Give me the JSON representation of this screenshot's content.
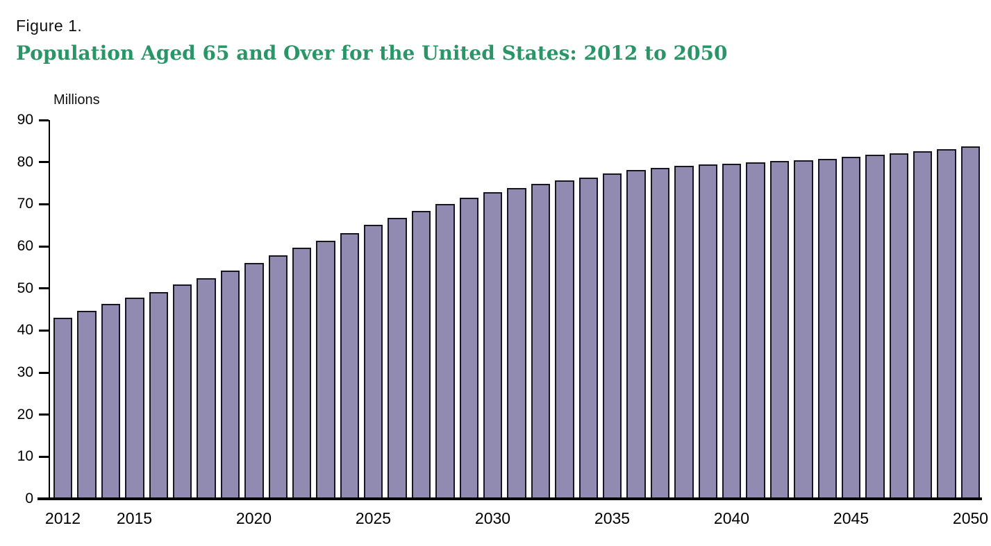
{
  "header": {
    "figure_label": "Figure 1.",
    "title": "Population Aged 65 and Over for the United States: 2012 to 2050"
  },
  "chart_data": {
    "type": "bar",
    "title": "Population Aged 65 and Over for the United States: 2012 to 2050",
    "ylabel": "Millions",
    "xlabel": "",
    "ylim": [
      0,
      90
    ],
    "grid": false,
    "legend": null,
    "y_ticks": [
      0,
      10,
      20,
      30,
      40,
      50,
      60,
      70,
      80,
      90
    ],
    "categories": [
      "2012",
      "2013",
      "2014",
      "2015",
      "2016",
      "2017",
      "2018",
      "2019",
      "2020",
      "2021",
      "2022",
      "2023",
      "2024",
      "2025",
      "2026",
      "2027",
      "2028",
      "2029",
      "2030",
      "2031",
      "2032",
      "2033",
      "2034",
      "2035",
      "2036",
      "2037",
      "2038",
      "2039",
      "2040",
      "2041",
      "2042",
      "2043",
      "2044",
      "2045",
      "2046",
      "2047",
      "2048",
      "2049",
      "2050"
    ],
    "values": [
      43.1,
      44.7,
      46.3,
      47.8,
      49.2,
      50.9,
      52.4,
      54.2,
      56.0,
      57.8,
      59.7,
      61.4,
      63.2,
      65.1,
      66.8,
      68.4,
      70.0,
      71.5,
      72.8,
      73.9,
      74.8,
      75.7,
      76.4,
      77.3,
      78.1,
      78.7,
      79.1,
      79.4,
      79.7,
      79.9,
      80.2,
      80.5,
      80.8,
      81.2,
      81.7,
      82.1,
      82.6,
      83.1,
      83.7
    ],
    "x_tick_labels": [
      {
        "label": "2012",
        "bar_index": 0
      },
      {
        "label": "2015",
        "bar_index": 3
      },
      {
        "label": "2020",
        "bar_index": 8
      },
      {
        "label": "2025",
        "bar_index": 13
      },
      {
        "label": "2030",
        "bar_index": 18
      },
      {
        "label": "2035",
        "bar_index": 23
      },
      {
        "label": "2040",
        "bar_index": 28
      },
      {
        "label": "2045",
        "bar_index": 33
      },
      {
        "label": "2050",
        "bar_index": 38
      }
    ],
    "colors": {
      "bar_fill": "#918AB1",
      "bar_border": "#16161F",
      "title_green": "#2A9667",
      "axis_text": "#000000"
    }
  }
}
